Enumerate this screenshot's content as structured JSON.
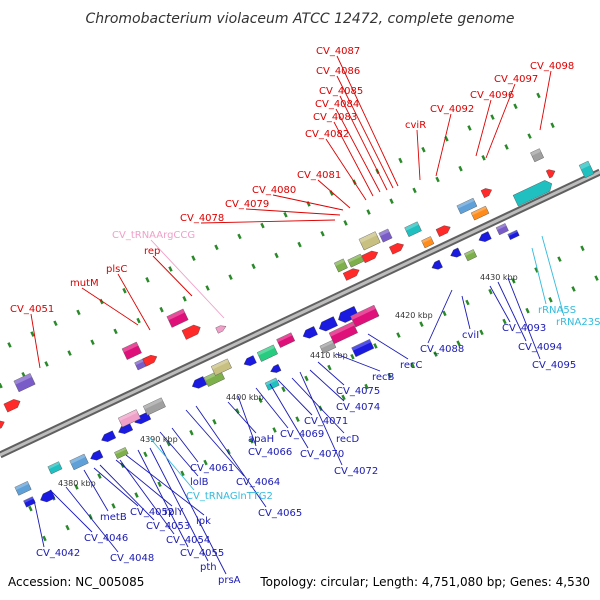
{
  "title": "Chromobacterium violaceum ATCC 12472, complete genome",
  "footer": {
    "accession": "Accession: NC_005085",
    "summary": "Topology: circular; Length: 4,751,080 bp; Genes: 4,530"
  },
  "colors": {
    "label_forward": "#dd0000",
    "label_reverse": "#1a1ab4",
    "label_rna": "#33bbdd",
    "label_trna_pink": "#f0a0c8",
    "backbone": "#808080",
    "tick": "#2a8a2a"
  },
  "ticks": [
    {
      "label": "4380 kbp"
    },
    {
      "label": "4390 kbp"
    },
    {
      "label": "4400 kbp"
    },
    {
      "label": "4410 kbp"
    },
    {
      "label": "4420 kbp"
    },
    {
      "label": "4430 kbp"
    }
  ],
  "labels_top": [
    {
      "text": "CV_4051",
      "color": "#dd0000"
    },
    {
      "text": "mutM",
      "color": "#dd0000"
    },
    {
      "text": "plsC",
      "color": "#dd0000"
    },
    {
      "text": "rep",
      "color": "#dd0000"
    },
    {
      "text": "CV_tRNAArgCCG",
      "color": "#f0a0c8"
    },
    {
      "text": "CV_4078",
      "color": "#dd0000"
    },
    {
      "text": "CV_4079",
      "color": "#dd0000"
    },
    {
      "text": "CV_4080",
      "color": "#dd0000"
    },
    {
      "text": "CV_4081",
      "color": "#dd0000"
    },
    {
      "text": "CV_4082",
      "color": "#dd0000"
    },
    {
      "text": "CV_4083",
      "color": "#dd0000"
    },
    {
      "text": "CV_4084",
      "color": "#dd0000"
    },
    {
      "text": "CV_4085",
      "color": "#dd0000"
    },
    {
      "text": "CV_4086",
      "color": "#dd0000"
    },
    {
      "text": "CV_4087",
      "color": "#dd0000"
    },
    {
      "text": "cviR",
      "color": "#dd0000"
    },
    {
      "text": "CV_4092",
      "color": "#dd0000"
    },
    {
      "text": "CV_4096",
      "color": "#dd0000"
    },
    {
      "text": "CV_4097",
      "color": "#dd0000"
    },
    {
      "text": "CV_4098",
      "color": "#dd0000"
    }
  ],
  "labels_bottom": [
    {
      "text": "CV_4042",
      "color": "#1a1ab4"
    },
    {
      "text": "CV_4046",
      "color": "#1a1ab4"
    },
    {
      "text": "CV_4048",
      "color": "#1a1ab4"
    },
    {
      "text": "metB",
      "color": "#1a1ab4"
    },
    {
      "text": "CV_4052",
      "color": "#1a1ab4"
    },
    {
      "text": "rplY",
      "color": "#1a1ab4"
    },
    {
      "text": "CV_4053",
      "color": "#1a1ab4"
    },
    {
      "text": "CV_4054",
      "color": "#1a1ab4"
    },
    {
      "text": "ipk",
      "color": "#1a1ab4"
    },
    {
      "text": "CV_4055",
      "color": "#1a1ab4"
    },
    {
      "text": "pth",
      "color": "#1a1ab4"
    },
    {
      "text": "prsA",
      "color": "#1a1ab4"
    },
    {
      "text": "CV_tRNAGlnTTG2",
      "color": "#33bbdd"
    },
    {
      "text": "lolB",
      "color": "#1a1ab4"
    },
    {
      "text": "CV_4061",
      "color": "#1a1ab4"
    },
    {
      "text": "CV_4064",
      "color": "#1a1ab4"
    },
    {
      "text": "CV_4065",
      "color": "#1a1ab4"
    },
    {
      "text": "apaH",
      "color": "#1a1ab4"
    },
    {
      "text": "CV_4066",
      "color": "#1a1ab4"
    },
    {
      "text": "CV_4069",
      "color": "#1a1ab4"
    },
    {
      "text": "CV_4070",
      "color": "#1a1ab4"
    },
    {
      "text": "CV_4071",
      "color": "#1a1ab4"
    },
    {
      "text": "recD",
      "color": "#1a1ab4"
    },
    {
      "text": "CV_4072",
      "color": "#1a1ab4"
    },
    {
      "text": "CV_4074",
      "color": "#1a1ab4"
    },
    {
      "text": "CV_4075",
      "color": "#1a1ab4"
    },
    {
      "text": "recB",
      "color": "#1a1ab4"
    },
    {
      "text": "recC",
      "color": "#1a1ab4"
    },
    {
      "text": "CV_4088",
      "color": "#1a1ab4"
    },
    {
      "text": "cviI",
      "color": "#1a1ab4"
    },
    {
      "text": "CV_4093",
      "color": "#1a1ab4"
    },
    {
      "text": "CV_4094",
      "color": "#1a1ab4"
    },
    {
      "text": "CV_4095",
      "color": "#1a1ab4"
    },
    {
      "text": "rRNA5S",
      "color": "#33bbdd"
    },
    {
      "text": "rRNA23S",
      "color": "#33bbdd"
    }
  ]
}
